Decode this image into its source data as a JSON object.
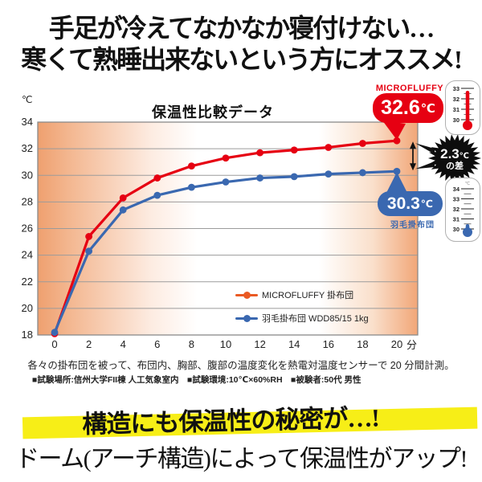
{
  "headline": {
    "line1": "手足が冷えてなかなか寝付けない…",
    "line2": "寒くて熟睡出来ないという方にオススメ!"
  },
  "chart_data": {
    "type": "line",
    "title": "保温性比較データ",
    "y_unit": "℃",
    "x_unit": "分",
    "x": [
      0,
      2,
      4,
      6,
      8,
      10,
      12,
      14,
      16,
      18,
      20
    ],
    "ylim": [
      18,
      34
    ],
    "yticks": [
      34,
      32,
      30,
      28,
      26,
      24,
      22,
      20,
      18
    ],
    "grid": true,
    "legend_position": "inside-bottom-right",
    "series": [
      {
        "name": "MICROFLUFFY 掛布団",
        "color": "#e60012",
        "legend_color": "#ea5a24",
        "values": [
          18.1,
          25.4,
          28.3,
          29.8,
          30.7,
          31.3,
          31.7,
          31.9,
          32.1,
          32.4,
          32.6
        ]
      },
      {
        "name": "羽毛掛布団 WDD85/15 1kg",
        "color": "#3a68b0",
        "legend_color": "#3a68b0",
        "values": [
          18.2,
          24.3,
          27.4,
          28.5,
          29.1,
          29.5,
          29.8,
          29.9,
          30.1,
          30.2,
          30.3
        ]
      }
    ]
  },
  "annotations": {
    "microfluffy_label": "MICROFLUFFY",
    "red_badge_value": "32.6",
    "red_badge_unit": "℃",
    "blue_badge_value": "30.3",
    "blue_badge_unit": "℃",
    "blue_badge_caption": "羽毛掛布団",
    "diff_value": "2.3",
    "diff_unit": "℃",
    "diff_caption": "の差"
  },
  "thermometers": {
    "top": {
      "labels": [
        33,
        32,
        31,
        30
      ],
      "value": 32.6,
      "color": "#e60012"
    },
    "bottom": {
      "labels": [
        34,
        33,
        32,
        31,
        30
      ],
      "value": 30.3,
      "color": "#3a68b0",
      "top_mark": "℃"
    }
  },
  "footnotes": {
    "line1": "各々の掛布団を被って、布団内、胸部、腹部の温度変化を熱電対温度センサーで 20 分間計測。",
    "line2": "■試験場所:信州大学FII棟 人工気象室内　■試験環境:10℃×60%RH　■被験者:50代 男性"
  },
  "bottom": {
    "highlight": "構造にも保温性の秘密が…!",
    "statement": "ドーム(アーチ構造)によって保温性がアップ!"
  },
  "colors": {
    "red": "#e60012",
    "blue": "#3a68b0",
    "yellow": "#f7ee17",
    "burst_black": "#0d0d0d"
  }
}
